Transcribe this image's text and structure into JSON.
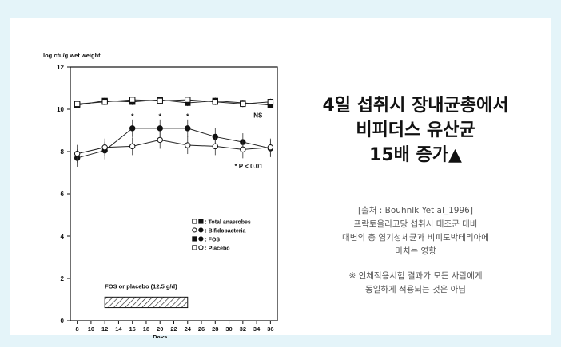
{
  "headline": {
    "line1": "4일 섭취시 장내균총에서",
    "line2": "비피더스 유산균",
    "line3": "15배 증가▲"
  },
  "source": {
    "citation": "[출처 : Bouhnlk Yet al_1996]",
    "desc1": "프락토올리고당 섭취시 대조군 대비",
    "desc2": "대변의 총 염기성세균과 비피도박테리아에",
    "desc3": "미치는 영향",
    "disclaimer1": "※ 인체적용시험 결과가 모든 사람에게",
    "disclaimer2": "동일하게 적용되는 것은 아님"
  },
  "chart_data": {
    "type": "line",
    "ylabel": "log cfu/g wet weight",
    "xlabel": "Days",
    "xlim": [
      7,
      37
    ],
    "ylim": [
      0,
      12
    ],
    "x_ticks": [
      8,
      10,
      12,
      14,
      16,
      18,
      20,
      22,
      24,
      26,
      28,
      30,
      32,
      34,
      36
    ],
    "y_ticks": [
      0,
      2,
      4,
      6,
      8,
      10,
      12
    ],
    "x": [
      8,
      12,
      16,
      20,
      24,
      28,
      32,
      36
    ],
    "series": [
      {
        "name": "Total anaerobes",
        "marker": "filled-square",
        "values": [
          10.2,
          10.4,
          10.35,
          10.45,
          10.3,
          10.4,
          10.3,
          10.2
        ]
      },
      {
        "name": "Total anaerobes",
        "marker": "open-square",
        "values": [
          10.25,
          10.35,
          10.45,
          10.4,
          10.45,
          10.35,
          10.25,
          10.35
        ]
      },
      {
        "name": "Bifidobacteria",
        "marker": "filled-circle",
        "values": [
          7.7,
          8.05,
          9.1,
          9.1,
          9.1,
          8.7,
          8.45,
          8.15
        ]
      },
      {
        "name": "Bifidobacteria",
        "marker": "open-circle",
        "values": [
          7.9,
          8.2,
          8.25,
          8.55,
          8.3,
          8.25,
          8.1,
          8.2
        ]
      }
    ],
    "legend": {
      "position": "center-right",
      "entries": [
        ": Total anaerobes",
        ": Bifidobacteria",
        ": FOS",
        ": Placebo"
      ],
      "markers": [
        [
          "open-square",
          "filled-square"
        ],
        [
          "open-circle",
          "filled-circle"
        ],
        [
          "filled-square",
          "filled-circle"
        ],
        [
          "open-square",
          "open-circle"
        ]
      ]
    },
    "annotations": {
      "ns": "NS",
      "significance": "* P < 0.01",
      "star": "*",
      "star_days": [
        16,
        20,
        24
      ],
      "bar_label": "FOS or placebo (12.5 g/d)",
      "bar_days": [
        12,
        24
      ]
    }
  }
}
